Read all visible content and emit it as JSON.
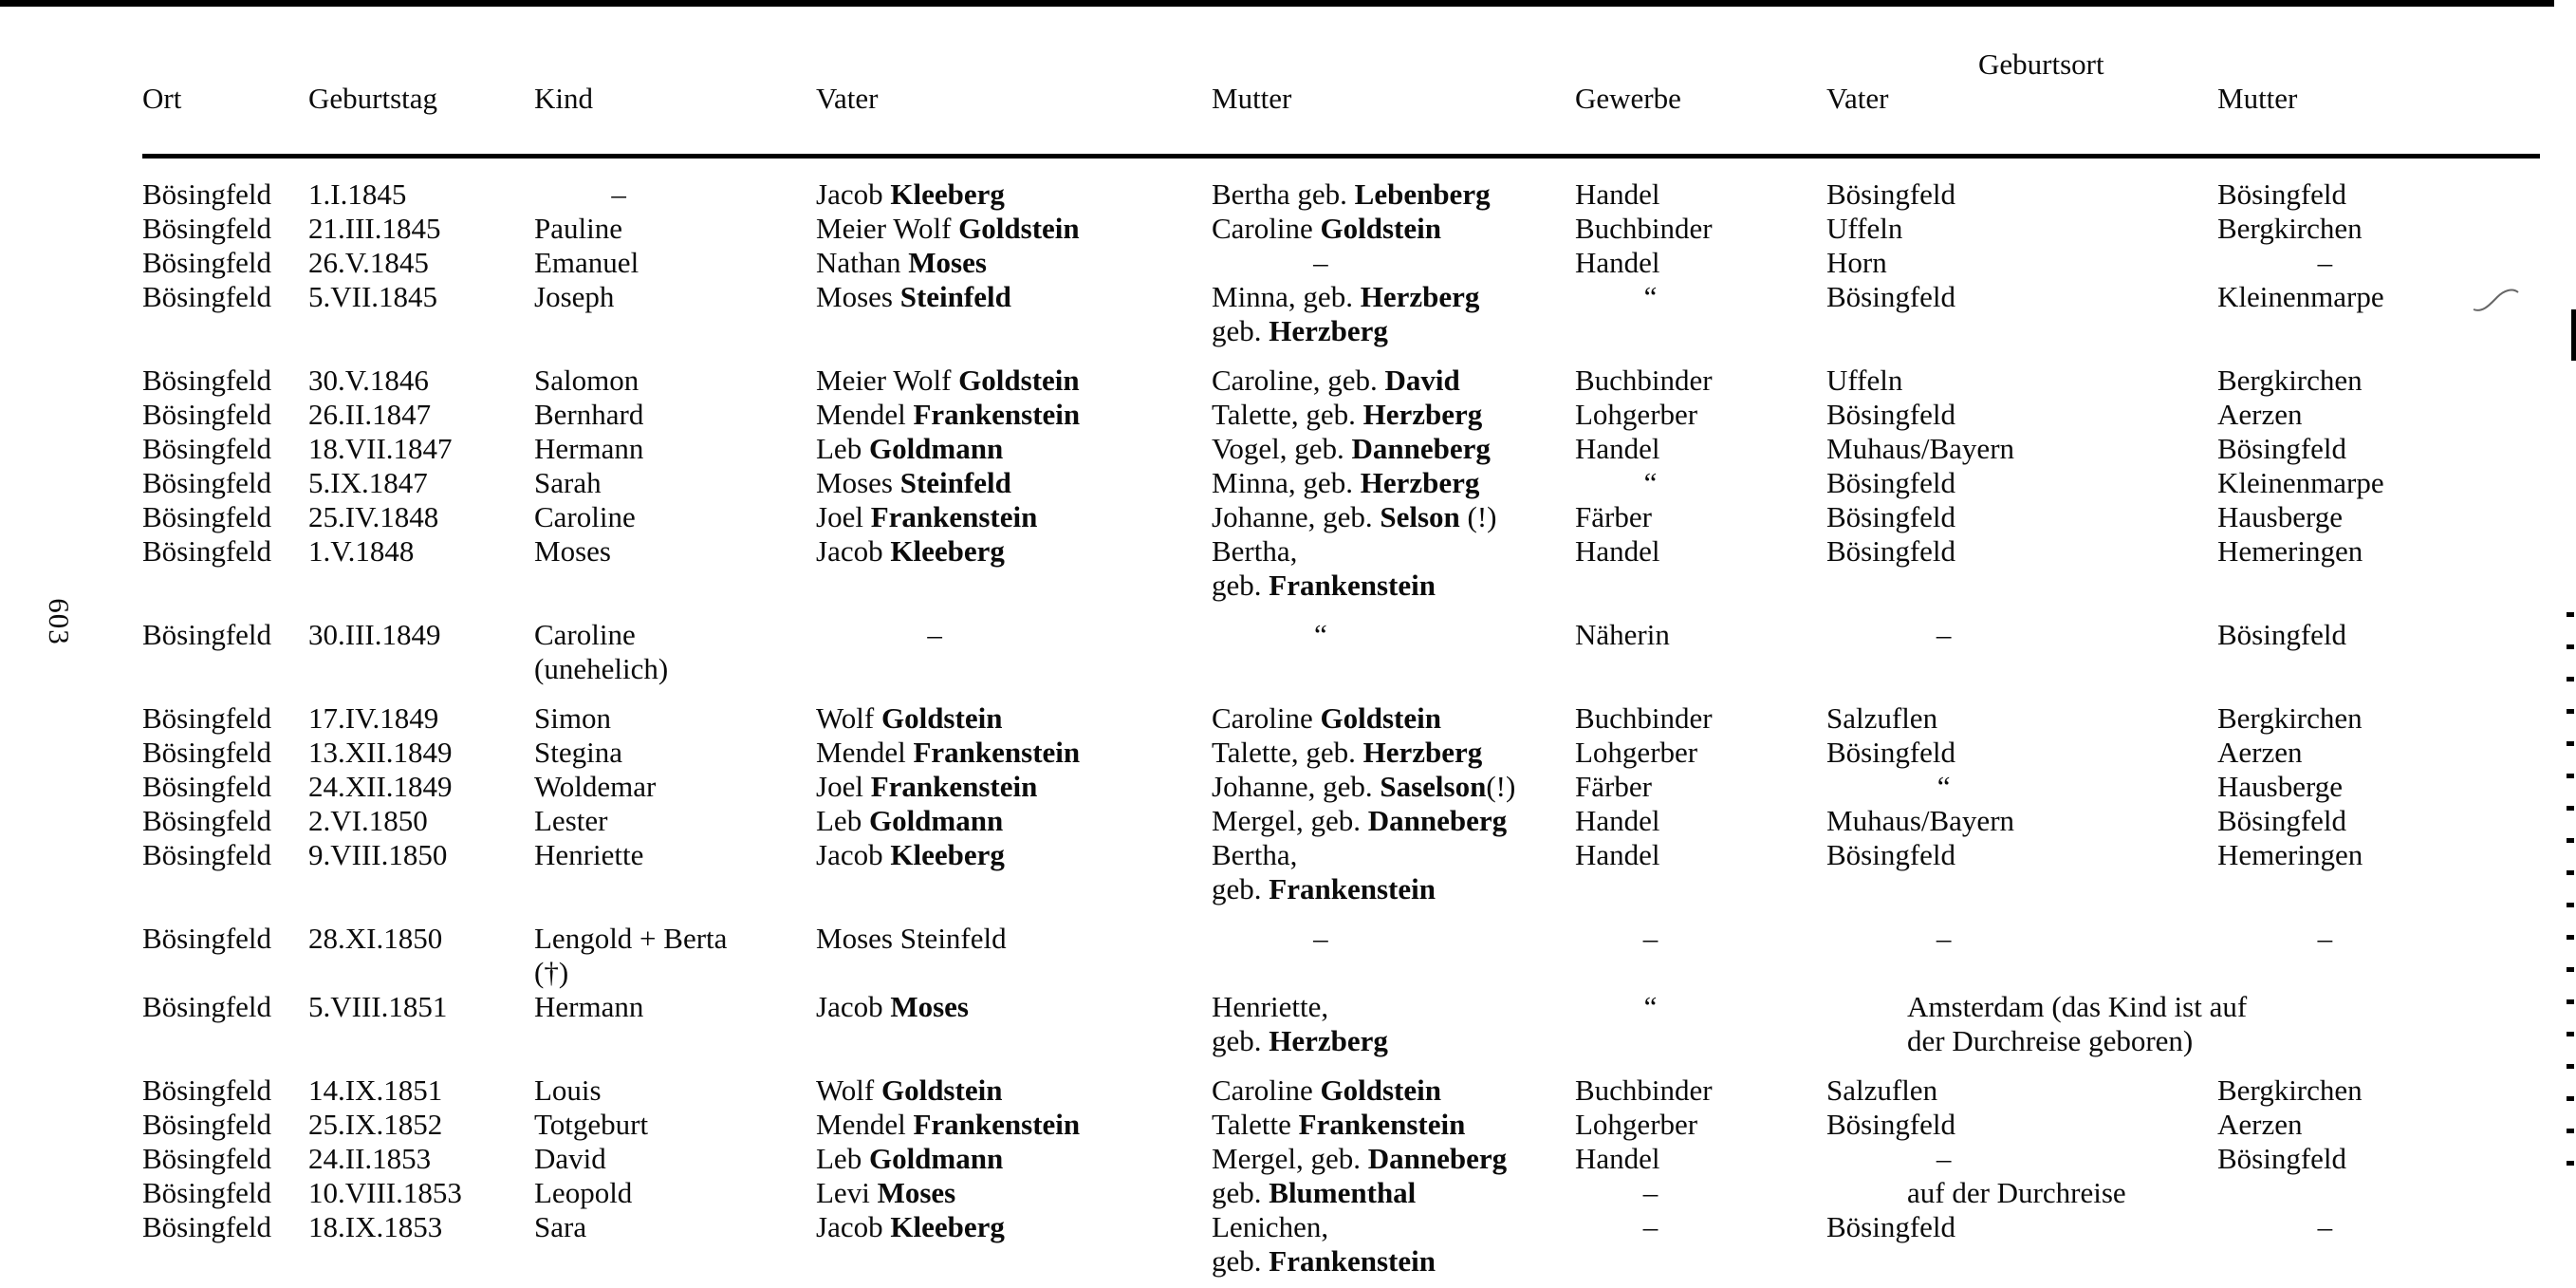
{
  "page": {
    "number": "603"
  },
  "table": {
    "headers": {
      "geburtsort": "Geburtsort",
      "cols": [
        "Ort",
        "Geburtstag",
        "Kind",
        "Vater",
        "Mutter",
        "Gewerbe",
        "Vater",
        "Mutter"
      ]
    },
    "groups": [
      {
        "rows": [
          [
            "Bösingfeld",
            "1.I.1845",
            {
              "t": "–",
              "c": true
            },
            "Jacob **Kleeberg**",
            "Bertha geb. **Lebenberg**",
            "Handel",
            "Bösingfeld",
            "Bösingfeld"
          ],
          [
            "Bösingfeld",
            "21.III.1845",
            "Pauline",
            "Meier Wolf **Goldstein**",
            "Caroline **Goldstein**",
            "Buchbinder",
            "Uffeln",
            "Bergkirchen"
          ],
          [
            "Bösingfeld",
            "26.V.1845",
            "Emanuel",
            "Nathan **Moses**",
            {
              "t": "–",
              "c": true
            },
            "Handel",
            "Horn",
            {
              "t": "–",
              "c": true
            }
          ],
          [
            "Bösingfeld",
            "5.VII.1845",
            "Joseph",
            "Moses **Steinfeld**",
            [
              "Minna, geb. **Herzberg**",
              "geb. **Herzberg**"
            ],
            {
              "t": "“",
              "c": true
            },
            "Bösingfeld",
            "Kleinenmarpe"
          ]
        ]
      },
      {
        "rows": [
          [
            "Bösingfeld",
            "30.V.1846",
            "Salomon",
            "Meier Wolf **Goldstein**",
            "Caroline, geb. **David**",
            "Buchbinder",
            "Uffeln",
            "Bergkirchen"
          ],
          [
            "Bösingfeld",
            "26.II.1847",
            "Bernhard",
            "Mendel **Frankenstein**",
            "Talette, geb. **Herzberg**",
            "Lohgerber",
            "Bösingfeld",
            "Aerzen"
          ],
          [
            "Bösingfeld",
            "18.VII.1847",
            "Hermann",
            "Leb **Goldmann**",
            "Vogel, geb. **Danneberg**",
            "Handel",
            "Muhaus/Bayern",
            "Bösingfeld"
          ],
          [
            "Bösingfeld",
            "5.IX.1847",
            "Sarah",
            "Moses **Steinfeld**",
            "Minna, geb. **Herzberg**",
            {
              "t": "“",
              "c": true
            },
            "Bösingfeld",
            "Kleinenmarpe"
          ],
          [
            "Bösingfeld",
            "25.IV.1848",
            "Caroline",
            "Joel **Frankenstein**",
            "Johanne, geb. **Selson** (!)",
            "Färber",
            "Bösingfeld",
            "Hausberge"
          ],
          [
            "Bösingfeld",
            "1.V.1848",
            "Moses",
            "Jacob **Kleeberg**",
            [
              "Bertha,",
              "geb. **Frankenstein**"
            ],
            "Handel",
            "Bösingfeld",
            "Hemeringen"
          ]
        ]
      },
      {
        "rows": [
          [
            "Bösingfeld",
            "30.III.1849",
            [
              "Caroline",
              "(unehelich)"
            ],
            {
              "t": "–",
              "c": true
            },
            {
              "t": "“",
              "c": true
            },
            "Näherin",
            {
              "t": "–",
              "c": true
            },
            "Bösingfeld"
          ]
        ]
      },
      {
        "rows": [
          [
            "Bösingfeld",
            "17.IV.1849",
            "Simon",
            "Wolf **Goldstein**",
            "Caroline **Goldstein**",
            "Buchbinder",
            "Salzuflen",
            "Bergkirchen"
          ],
          [
            "Bösingfeld",
            "13.XII.1849",
            "Stegina",
            "Mendel **Frankenstein**",
            "Talette, geb. **Herzberg**",
            "Lohgerber",
            "Bösingfeld",
            "Aerzen"
          ],
          [
            "Bösingfeld",
            "24.XII.1849",
            "Woldemar",
            "Joel **Frankenstein**",
            "Johanne, geb. **Saselson**(!)",
            "Färber",
            {
              "t": "“",
              "c": true
            },
            "Hausberge"
          ],
          [
            "Bösingfeld",
            "2.VI.1850",
            "Lester",
            "Leb **Goldmann**",
            "Mergel, geb. **Danneberg**",
            "Handel",
            "Muhaus/Bayern",
            "Bösingfeld"
          ],
          [
            "Bösingfeld",
            "9.VIII.1850",
            "Henriette",
            "Jacob **Kleeberg**",
            [
              "Bertha,",
              "geb. **Frankenstein**"
            ],
            "Handel",
            "Bösingfeld",
            "Hemeringen"
          ]
        ]
      },
      {
        "rows": [
          [
            "Bösingfeld",
            "28.XI.1850",
            [
              "Lengold + Berta",
              "(†)"
            ],
            "Moses Steinfeld",
            {
              "t": "–",
              "c": true
            },
            {
              "t": "–",
              "c": true
            },
            {
              "t": "–",
              "c": true
            },
            {
              "t": "–",
              "c": true
            }
          ],
          [
            "Bösingfeld",
            "5.VIII.1851",
            "Hermann",
            "Jacob **Moses**",
            [
              "Henriette,",
              "geb. **Herzberg**"
            ],
            {
              "t": "“",
              "c": true
            },
            {
              "t": [
                "Amsterdam (das Kind ist auf",
                "der Durchreise geboren)"
              ],
              "span": 2,
              "pad": 85
            },
            null
          ]
        ]
      },
      {
        "rows": [
          [
            "Bösingfeld",
            "14.IX.1851",
            "Louis",
            "Wolf **Goldstein**",
            "Caroline **Goldstein**",
            "Buchbinder",
            "Salzuflen",
            "Bergkirchen"
          ],
          [
            "Bösingfeld",
            "25.IX.1852",
            "Totgeburt",
            "Mendel **Frankenstein**",
            "Talette **Frankenstein**",
            "Lohgerber",
            "Bösingfeld",
            "Aerzen"
          ],
          [
            "Bösingfeld",
            "24.II.1853",
            "David",
            "Leb **Goldmann**",
            "Mergel, geb. **Danneberg**",
            "Handel",
            {
              "t": "–",
              "c": true
            },
            "Bösingfeld"
          ],
          [
            "Bösingfeld",
            "10.VIII.1853",
            "Leopold",
            "Levi **Moses**",
            "geb. **Blumenthal**",
            {
              "t": "–",
              "c": true
            },
            {
              "t": "auf der Durchreise",
              "span": 2,
              "pad": 85
            },
            null
          ],
          [
            "Bösingfeld",
            "18.IX.1853",
            "Sara",
            "Jacob **Kleeberg**",
            [
              "Lenichen,",
              "geb. **Frankenstein**"
            ],
            {
              "t": "–",
              "c": true
            },
            "Bösingfeld",
            {
              "t": "–",
              "c": true
            }
          ]
        ]
      }
    ]
  }
}
